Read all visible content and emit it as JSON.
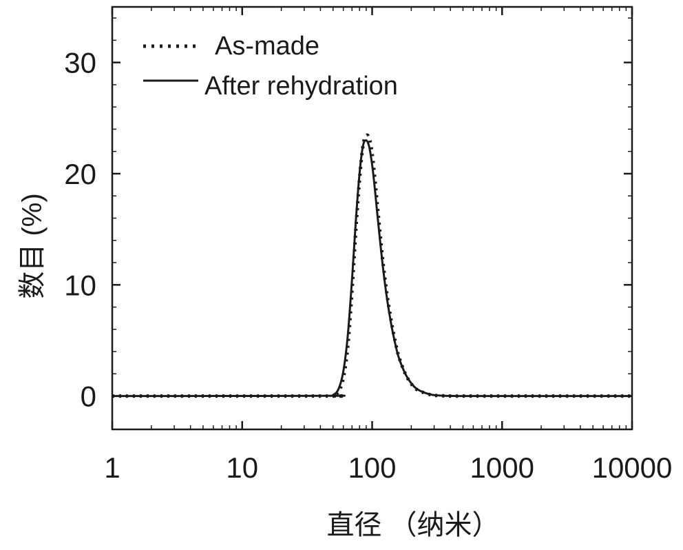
{
  "chart_data": {
    "type": "line",
    "title": "",
    "xlabel": "直径 （纳米）",
    "ylabel": "数目 (%)",
    "x_scale": "log",
    "xlim": [
      1,
      10000
    ],
    "ylim": [
      -3,
      35
    ],
    "x_ticks": [
      1,
      10,
      100,
      1000,
      10000
    ],
    "x_tick_labels": [
      "1",
      "10",
      "100",
      "1000",
      "10000"
    ],
    "y_ticks": [
      0,
      10,
      20,
      30
    ],
    "y_tick_labels": [
      "0",
      "10",
      "20",
      "30"
    ],
    "grid": false,
    "legend_position": "top-left",
    "series": [
      {
        "name": "As-made",
        "style": "dotted",
        "color": "#1a1a1a",
        "x": [
          1,
          45,
          50,
          55,
          60,
          65,
          70,
          75,
          80,
          85,
          90,
          95,
          100,
          105,
          110,
          120,
          130,
          140,
          150,
          160,
          180,
          200,
          220,
          250,
          280,
          300,
          350,
          400,
          500,
          1000,
          10000
        ],
        "y": [
          0,
          0,
          0.05,
          0.4,
          1.6,
          4.5,
          9.5,
          15,
          19.5,
          22.5,
          23.4,
          23.2,
          21.8,
          19.5,
          17,
          12.5,
          9.2,
          6.8,
          5,
          3.6,
          2,
          1.1,
          0.6,
          0.3,
          0.12,
          0.06,
          0.02,
          0,
          0,
          0,
          0
        ]
      },
      {
        "name": "After rehydration",
        "style": "solid",
        "color": "#1a1a1a",
        "x": [
          1,
          45,
          50,
          55,
          60,
          65,
          70,
          75,
          80,
          85,
          90,
          95,
          100,
          105,
          110,
          120,
          130,
          140,
          150,
          160,
          180,
          200,
          220,
          250,
          280,
          300,
          350,
          400,
          500,
          1000,
          10000
        ],
        "y": [
          0,
          0.02,
          0.1,
          0.6,
          2.2,
          5.5,
          10.5,
          15.8,
          20,
          22.5,
          23,
          22.4,
          20.8,
          18.6,
          16.2,
          12,
          8.8,
          6.5,
          4.8,
          3.5,
          2,
          1.15,
          0.65,
          0.32,
          0.15,
          0.08,
          0.03,
          0.01,
          0,
          0,
          0
        ]
      }
    ]
  }
}
